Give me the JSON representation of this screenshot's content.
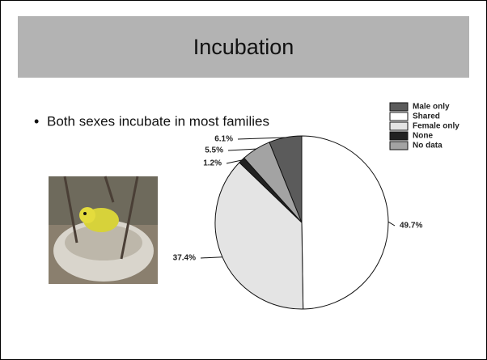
{
  "slide": {
    "title": "Incubation",
    "bullet": "Both sexes incubate in most families"
  },
  "chart_data": {
    "type": "pie",
    "series": [
      {
        "name": "Male only",
        "color": "#5b5b5b",
        "values": [
          6.1
        ],
        "value_labels": [
          "6.1%"
        ]
      },
      {
        "name": "Shared",
        "color": "#ffffff",
        "values": [
          49.7
        ],
        "value_labels": [
          "49.7%"
        ]
      },
      {
        "name": "Female only",
        "color": "#e4e4e4",
        "values": [
          37.4
        ],
        "value_labels": [
          "37.4%"
        ]
      },
      {
        "name": "None",
        "color": "#222222",
        "values": [
          1.2
        ],
        "value_labels": [
          "1.2%"
        ]
      },
      {
        "name": "No data",
        "color": "#a3a3a3",
        "values": [
          5.5
        ],
        "value_labels": [
          "5.5%"
        ]
      }
    ],
    "legend": "upper right"
  }
}
